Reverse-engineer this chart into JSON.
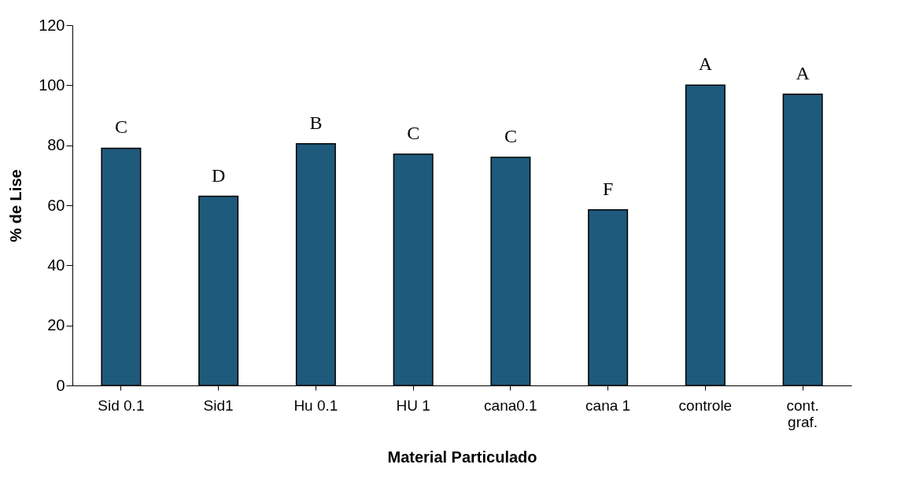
{
  "chart_data": {
    "type": "bar",
    "xlabel": "Material Particulado",
    "ylabel": "% de Lise",
    "categories": [
      "Sid 0.1",
      "Sid1",
      "Hu 0.1",
      "HU 1",
      "cana0.1",
      "cana 1",
      "controle",
      "cont.\ngraf."
    ],
    "series": [
      {
        "color": "#1e5a7c",
        "values": [
          79,
          63,
          80.5,
          77,
          76,
          58.5,
          100,
          97
        ]
      }
    ],
    "ylim": [
      0,
      120
    ],
    "yticks": [
      0,
      20,
      40,
      60,
      80,
      100,
      120
    ],
    "grid": false,
    "annotations": [
      {
        "text": "C",
        "x": "Sid 0.1",
        "y": 79
      },
      {
        "text": "D",
        "x": "Sid1",
        "y": 63
      },
      {
        "text": "B",
        "x": "Hu 0.1",
        "y": 80.5
      },
      {
        "text": "C",
        "x": "HU 1",
        "y": 77
      },
      {
        "text": "C",
        "x": "cana0.1",
        "y": 76
      },
      {
        "text": "F",
        "x": "cana 1",
        "y": 58.5
      },
      {
        "text": "A",
        "x": "controle",
        "y": 100
      },
      {
        "text": "A",
        "x": "cont.\ngraf.",
        "y": 97
      }
    ]
  }
}
